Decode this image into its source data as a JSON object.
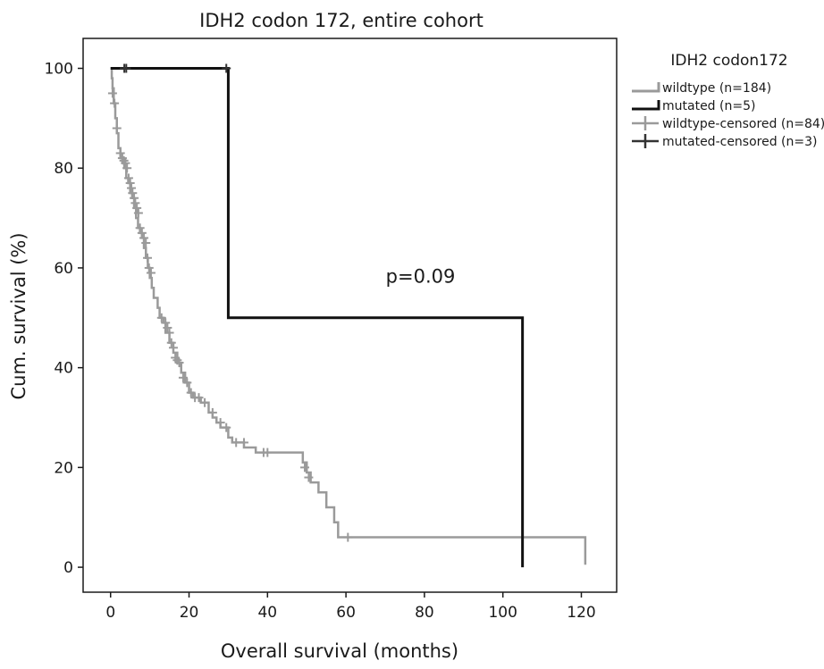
{
  "chart_data": {
    "type": "line",
    "subtype": "kaplan-meier",
    "title": "IDH2 codon 172, entire cohort",
    "xlabel": "Overall survival (months)",
    "ylabel": "Cum. survival (%)",
    "xlim": [
      -7,
      129
    ],
    "ylim": [
      -5,
      106
    ],
    "xticks": [
      0,
      20,
      40,
      60,
      80,
      100,
      120
    ],
    "yticks": [
      0,
      20,
      40,
      60,
      80,
      100
    ],
    "grid": false,
    "legend": {
      "title": "IDH2 codon172",
      "placement": "right",
      "entries": [
        {
          "label": "wildtype (n=184)",
          "symbol": "step",
          "color": "#9a9a9a"
        },
        {
          "label": "mutated (n=5)",
          "symbol": "step",
          "color": "#111111"
        },
        {
          "label": "wildtype-censored (n=84)",
          "symbol": "plus",
          "color": "#9a9a9a"
        },
        {
          "label": "mutated-censored (n=3)",
          "symbol": "plus",
          "color": "#333333"
        }
      ]
    },
    "annotations": [
      {
        "text": "p=0.09",
        "x": 79,
        "y": 57
      }
    ],
    "series": [
      {
        "name": "wildtype (n=184)",
        "color": "#9a9a9a",
        "steps": [
          [
            0,
            100
          ],
          [
            0.3,
            98
          ],
          [
            0.5,
            96
          ],
          [
            0.8,
            93
          ],
          [
            1.2,
            90
          ],
          [
            1.6,
            87
          ],
          [
            2.0,
            84
          ],
          [
            2.5,
            82
          ],
          [
            3.0,
            81
          ],
          [
            3.5,
            80
          ],
          [
            4.0,
            78
          ],
          [
            4.5,
            77
          ],
          [
            5.0,
            75
          ],
          [
            5.5,
            74
          ],
          [
            6.0,
            72
          ],
          [
            6.5,
            70
          ],
          [
            7.0,
            68
          ],
          [
            7.5,
            67
          ],
          [
            8.0,
            66
          ],
          [
            8.5,
            64
          ],
          [
            9.0,
            62
          ],
          [
            9.5,
            60
          ],
          [
            10.0,
            58
          ],
          [
            10.5,
            56
          ],
          [
            11.0,
            54
          ],
          [
            12.0,
            52
          ],
          [
            12.5,
            50
          ],
          [
            13.5,
            49
          ],
          [
            14.0,
            47
          ],
          [
            15.0,
            45
          ],
          [
            16.0,
            43
          ],
          [
            17.0,
            41
          ],
          [
            18.0,
            39
          ],
          [
            19.0,
            37
          ],
          [
            20.0,
            35
          ],
          [
            21.0,
            34
          ],
          [
            23.0,
            33
          ],
          [
            25.0,
            31
          ],
          [
            26.0,
            30
          ],
          [
            27.0,
            29
          ],
          [
            28.0,
            28
          ],
          [
            30.0,
            26
          ],
          [
            31.0,
            25
          ],
          [
            34.0,
            24
          ],
          [
            37.0,
            23
          ],
          [
            49.0,
            21
          ],
          [
            50.0,
            19
          ],
          [
            51.0,
            17
          ],
          [
            53.0,
            15
          ],
          [
            55.0,
            12
          ],
          [
            57.0,
            9
          ],
          [
            58.0,
            6
          ],
          [
            121.0,
            0.5
          ]
        ],
        "censored": [
          [
            0.5,
            95
          ],
          [
            1.0,
            93
          ],
          [
            1.6,
            88
          ],
          [
            2.5,
            83
          ],
          [
            3.0,
            82
          ],
          [
            3.4,
            81.5
          ],
          [
            3.8,
            81
          ],
          [
            4.2,
            80
          ],
          [
            4.6,
            78
          ],
          [
            5.0,
            77
          ],
          [
            5.3,
            76
          ],
          [
            5.6,
            75
          ],
          [
            6.0,
            74
          ],
          [
            6.3,
            73
          ],
          [
            6.7,
            72
          ],
          [
            7.1,
            71
          ],
          [
            7.5,
            68
          ],
          [
            8.0,
            67
          ],
          [
            8.5,
            66
          ],
          [
            9.0,
            65
          ],
          [
            9.4,
            62
          ],
          [
            9.8,
            60
          ],
          [
            10.3,
            59
          ],
          [
            13.0,
            50
          ],
          [
            14.0,
            49
          ],
          [
            14.5,
            48
          ],
          [
            15.0,
            47
          ],
          [
            15.5,
            45
          ],
          [
            16.0,
            44
          ],
          [
            16.5,
            42
          ],
          [
            17.0,
            41.5
          ],
          [
            17.5,
            41
          ],
          [
            18.5,
            38
          ],
          [
            19.5,
            37
          ],
          [
            20.5,
            35
          ],
          [
            21.5,
            34
          ],
          [
            22.5,
            34
          ],
          [
            24.0,
            33
          ],
          [
            26.0,
            31
          ],
          [
            28.0,
            29
          ],
          [
            29.5,
            28
          ],
          [
            32.0,
            25
          ],
          [
            34.0,
            25
          ],
          [
            39.0,
            23
          ],
          [
            40.0,
            23
          ],
          [
            49.5,
            20
          ],
          [
            50.5,
            18
          ],
          [
            60.5,
            6
          ]
        ]
      },
      {
        "name": "mutated (n=5)",
        "color": "#111111",
        "steps": [
          [
            0,
            100
          ],
          [
            30.0,
            50
          ],
          [
            105.0,
            0
          ]
        ],
        "censored": [
          [
            3.5,
            100
          ],
          [
            4.0,
            100
          ],
          [
            29.5,
            100
          ]
        ]
      }
    ]
  }
}
